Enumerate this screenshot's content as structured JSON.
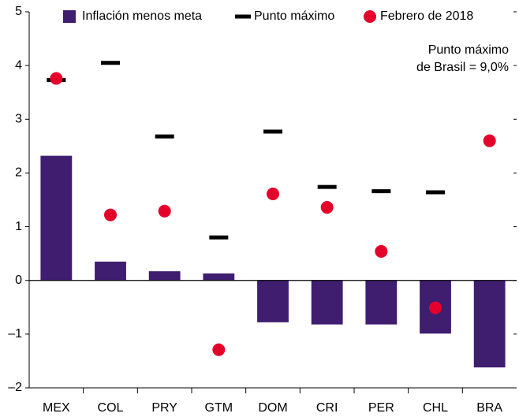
{
  "chart_data": {
    "type": "bar",
    "categories": [
      "MEX",
      "COL",
      "PRY",
      "GTM",
      "DOM",
      "CRI",
      "PER",
      "CHL",
      "BRA"
    ],
    "series": [
      {
        "name": "Inflación menos meta",
        "type": "bar",
        "color": "#3f1d6f",
        "values": [
          2.32,
          0.35,
          0.17,
          0.13,
          -0.78,
          -0.82,
          -0.82,
          -0.99,
          -1.62
        ]
      },
      {
        "name": "Punto máximo",
        "type": "dash",
        "color": "#000000",
        "values": [
          3.73,
          4.05,
          2.68,
          0.8,
          2.77,
          1.74,
          1.66,
          1.64,
          null
        ]
      },
      {
        "name": "Febrero de 2018",
        "type": "dot",
        "color": "#e4002b",
        "values": [
          3.76,
          1.22,
          1.29,
          -1.29,
          1.61,
          1.36,
          0.54,
          -0.51,
          2.6
        ]
      }
    ],
    "annotation": [
      "Punto máximo",
      "de Brasil = 9,0%"
    ],
    "ylim": [
      -2,
      5
    ],
    "yticks": [
      {
        "value": -2,
        "label": "–2"
      },
      {
        "value": -1,
        "label": "–1"
      },
      0,
      1,
      2,
      3,
      4,
      5
    ]
  }
}
